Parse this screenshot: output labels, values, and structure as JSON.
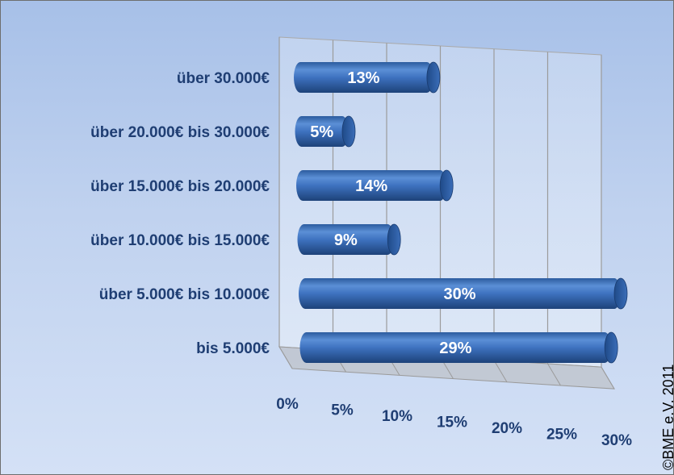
{
  "chart_data": {
    "type": "bar",
    "orientation": "horizontal",
    "style": "3d-cylinder",
    "categories": [
      "über 30.000€",
      "über 20.000€ bis 30.000€",
      "über 15.000€ bis 20.000€",
      "über 10.000€ bis 15.000€",
      "über 5.000€ bis 10.000€",
      "bis 5.000€"
    ],
    "values": [
      13,
      5,
      14,
      9,
      30,
      29
    ],
    "data_labels": [
      "13%",
      "5%",
      "14%",
      "9%",
      "30%",
      "29%"
    ],
    "x_ticks": [
      "0%",
      "5%",
      "10%",
      "15%",
      "20%",
      "25%",
      "30%"
    ],
    "xlim": [
      0,
      30
    ],
    "grid": true,
    "legend": "none",
    "bar_color": "#3f74c2",
    "annotation": "©BME e.V. 2011"
  }
}
